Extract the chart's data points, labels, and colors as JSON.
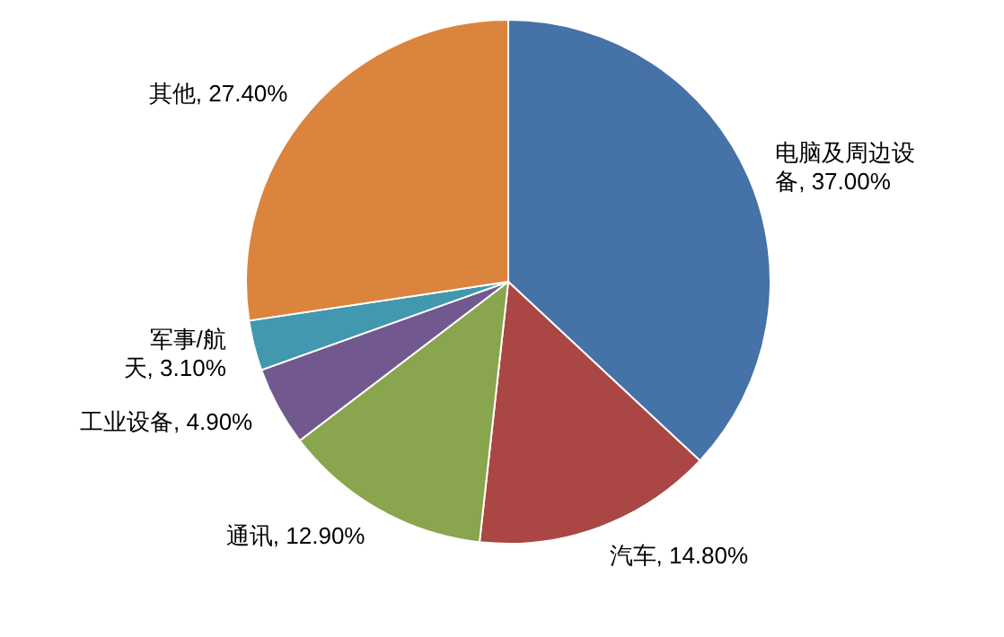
{
  "chart_data": {
    "type": "pie",
    "categories": [
      "电脑及周边设备",
      "汽车",
      "通讯",
      "工业设备",
      "军事/航天",
      "其他"
    ],
    "values": [
      37.0,
      14.8,
      12.9,
      4.9,
      3.1,
      27.4
    ],
    "value_labels": [
      "37.00%",
      "14.80%",
      "12.90%",
      "4.90%",
      "3.10%",
      "27.40%"
    ],
    "colors": [
      "#4572a7",
      "#aa4643",
      "#89a54e",
      "#71588f",
      "#4198af",
      "#db843d"
    ],
    "legend": false
  }
}
